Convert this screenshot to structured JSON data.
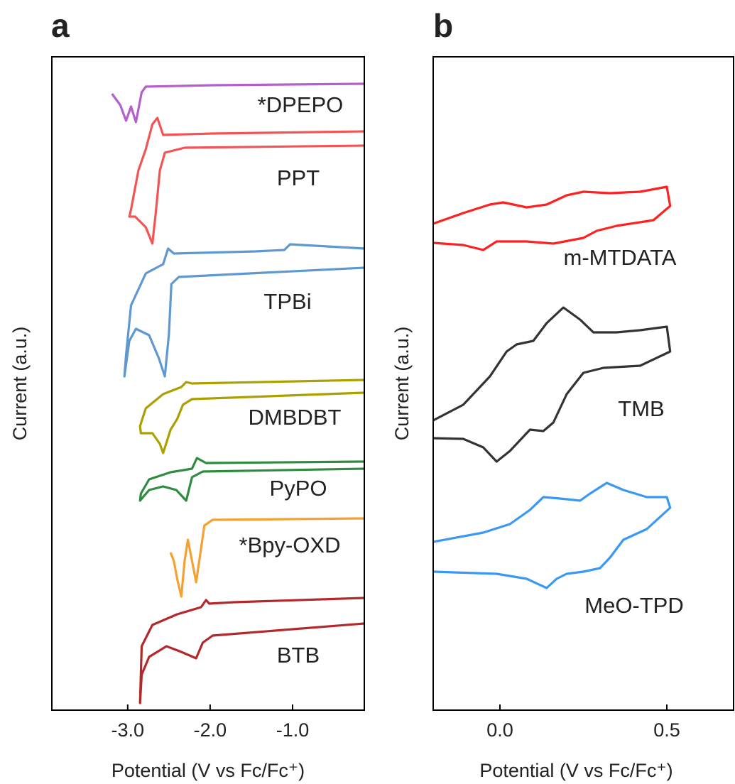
{
  "chart_data": [
    {
      "type": "line",
      "panel_label": "a",
      "xlabel": "Potential (V vs Fc/Fc⁺)",
      "ylabel": "Current (a.u.)",
      "xlim": [
        -3.92,
        -0.13
      ],
      "ylim": [
        0,
        92
      ],
      "xticks": [
        {
          "value": -3,
          "label": "-3.0"
        },
        {
          "value": -2,
          "label": "-2.0"
        },
        {
          "value": -1,
          "label": "-1.0"
        }
      ],
      "series": [
        {
          "name": "*DPEPO",
          "color": "#b35fcc",
          "x": [
            -3.19,
            -3.09,
            -3.02,
            -2.96,
            -2.9,
            -2.83,
            -2.78,
            -1.97,
            -0.13
          ],
          "values": [
            86.8,
            85.2,
            83.0,
            85.0,
            82.8,
            87.0,
            87.8,
            88.0,
            88.2
          ]
        },
        {
          "name": "PPT",
          "color": "#f25454",
          "x": [
            -0.13,
            -1.97,
            -2.57,
            -2.64,
            -2.7,
            -2.78,
            -2.87,
            -2.96,
            -2.98,
            -2.91,
            -2.78,
            -2.7,
            -2.66,
            -2.61,
            -2.55,
            -2.31,
            -0.13
          ],
          "values": [
            81.5,
            81.2,
            81.0,
            83.4,
            82.5,
            79.0,
            76.0,
            70.5,
            69.5,
            69.5,
            68.0,
            65.7,
            70.0,
            76.0,
            78.5,
            79.2,
            79.5
          ]
        },
        {
          "name": "TPBi",
          "color": "#5f97d0",
          "x": [
            -0.13,
            -1.03,
            -1.1,
            -1.45,
            -2.44,
            -2.51,
            -2.57,
            -2.78,
            -2.96,
            -3.02,
            -3.04,
            -2.98,
            -2.9,
            -2.74,
            -2.62,
            -2.55,
            -2.5,
            -2.47,
            -2.38,
            -0.13
          ],
          "values": [
            65.0,
            65.6,
            64.8,
            64.6,
            64.3,
            65.0,
            62.8,
            61.5,
            57.0,
            50.0,
            47.0,
            52.0,
            53.7,
            52.8,
            49.5,
            47.0,
            53.0,
            60.0,
            61.0,
            62.3
          ]
        },
        {
          "name": "DMBDBT",
          "color": "#aba000",
          "x": [
            -0.13,
            -2.22,
            -2.29,
            -2.35,
            -2.57,
            -2.78,
            -2.85,
            -2.84,
            -2.7,
            -2.61,
            -2.57,
            -2.48,
            -2.4,
            -2.33,
            -2.22,
            -0.13
          ],
          "values": [
            46.5,
            46.0,
            46.2,
            45.5,
            44.5,
            42.5,
            40.0,
            39.0,
            39.0,
            37.5,
            36.2,
            39.5,
            41.0,
            43.0,
            43.8,
            44.7
          ]
        },
        {
          "name": "PyPO",
          "color": "#2e8b40",
          "x": [
            -0.13,
            -2.05,
            -2.16,
            -2.22,
            -2.48,
            -2.74,
            -2.84,
            -2.85,
            -2.74,
            -2.57,
            -2.41,
            -2.29,
            -2.22,
            -2.09,
            -0.13
          ],
          "values": [
            35.0,
            34.8,
            35.5,
            34.0,
            33.5,
            32.5,
            30.5,
            29.5,
            31.0,
            31.5,
            31.0,
            29.5,
            32.8,
            33.6,
            34.0
          ]
        },
        {
          "name": "*Bpy-OXD",
          "color": "#f5a132",
          "x": [
            -2.48,
            -2.44,
            -2.4,
            -2.35,
            -2.31,
            -2.27,
            -2.22,
            -2.17,
            -2.12,
            -2.07,
            -1.97,
            -0.13
          ],
          "values": [
            22.2,
            21.0,
            18.5,
            16.0,
            21.0,
            24.0,
            21.0,
            18.0,
            22.0,
            26.0,
            26.8,
            27.0
          ]
        },
        {
          "name": "BTB",
          "color": "#b3292b",
          "x": [
            -0.13,
            -1.71,
            -2.01,
            -2.05,
            -2.11,
            -2.4,
            -2.7,
            -2.83,
            -2.85,
            -2.83,
            -2.74,
            -2.53,
            -2.35,
            -2.17,
            -2.09,
            -1.97,
            -0.13
          ],
          "values": [
            15.8,
            15.2,
            15.0,
            15.5,
            14.5,
            13.5,
            12.0,
            9.0,
            1.0,
            5.0,
            7.5,
            9.0,
            8.2,
            7.3,
            9.5,
            10.5,
            12.2
          ]
        }
      ]
    },
    {
      "type": "line",
      "panel_label": "b",
      "xlabel": "Potential (V vs Fc/Fc⁺)",
      "ylabel": "Current (a.u.)",
      "xlim": [
        -0.2,
        0.7
      ],
      "ylim": [
        0,
        92
      ],
      "xticks": [
        {
          "value": 0,
          "label": "0.0"
        },
        0.5
      ],
      "series": [
        {
          "name": "m-MTDATA",
          "color": "#ff2020",
          "x": [
            -0.2,
            -0.11,
            -0.03,
            0.01,
            0.08,
            0.14,
            0.2,
            0.25,
            0.33,
            0.42,
            0.5,
            0.51,
            0.46,
            0.35,
            0.29,
            0.25,
            0.16,
            0.08,
            -0.01,
            -0.05,
            -0.11,
            -0.2
          ],
          "values": [
            68.5,
            70.0,
            71.2,
            71.5,
            70.8,
            71.2,
            72.5,
            73.0,
            72.8,
            73.0,
            73.7,
            71.0,
            69.0,
            68.2,
            67.5,
            66.5,
            65.7,
            66.0,
            66.0,
            64.8,
            65.5,
            65.8
          ]
        },
        {
          "name": "TMB",
          "color": "#333333",
          "x": [
            -0.2,
            -0.11,
            -0.03,
            0.02,
            0.05,
            0.1,
            0.14,
            0.19,
            0.24,
            0.28,
            0.35,
            0.42,
            0.5,
            0.51,
            0.42,
            0.31,
            0.25,
            0.2,
            0.16,
            0.13,
            0.09,
            0.07,
            0.03,
            -0.01,
            -0.05,
            -0.11,
            -0.2
          ],
          "values": [
            40.8,
            43.0,
            47.0,
            50.5,
            51.5,
            52.0,
            54.5,
            56.7,
            55.0,
            53.2,
            53.2,
            53.5,
            54.0,
            50.5,
            48.5,
            48.2,
            47.5,
            44.5,
            40.5,
            39.3,
            39.5,
            38.5,
            36.5,
            35.0,
            37.0,
            38.2,
            38.3
          ]
        },
        {
          "name": "MeO-TPD",
          "color": "#3a98f5",
          "x": [
            -0.2,
            -0.05,
            0.03,
            0.09,
            0.13,
            0.18,
            0.24,
            0.27,
            0.32,
            0.37,
            0.44,
            0.5,
            0.51,
            0.44,
            0.37,
            0.33,
            0.3,
            0.25,
            0.2,
            0.17,
            0.14,
            0.08,
            -0.01,
            -0.2
          ],
          "values": [
            23.7,
            25.0,
            26.2,
            28.2,
            30.0,
            29.8,
            29.5,
            30.5,
            32.0,
            31.0,
            30.0,
            30.0,
            28.5,
            25.5,
            24.0,
            21.5,
            20.0,
            19.5,
            19.2,
            18.5,
            17.2,
            18.5,
            19.2,
            19.5
          ]
        }
      ]
    }
  ]
}
